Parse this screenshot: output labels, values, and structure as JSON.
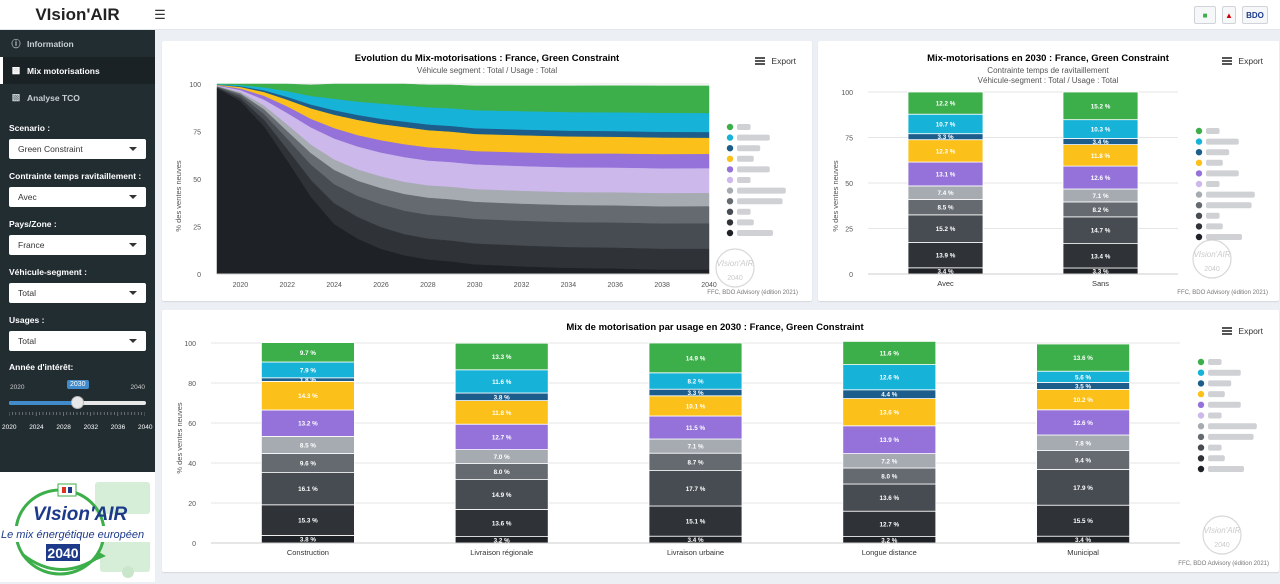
{
  "app": {
    "brand": "VIsion'AIR",
    "logo_right_text": "BDO"
  },
  "sidebar": {
    "menu": [
      {
        "label": "Information",
        "icon": "info-icon"
      },
      {
        "label": "Mix motorisations",
        "icon": "truck-icon"
      },
      {
        "label": "Analyse TCO",
        "icon": "chart-icon"
      }
    ],
    "controls": [
      {
        "label": "Scenario :",
        "value": "Green Constraint"
      },
      {
        "label": "Contrainte temps ravitaillement :",
        "value": "Avec"
      },
      {
        "label": "Pays/Zone :",
        "value": "France"
      },
      {
        "label": "Véhicule-segment :",
        "value": "Total"
      },
      {
        "label": "Usages :",
        "value": "Total"
      }
    ],
    "slider": {
      "label": "Année d'intérêt:",
      "min": "2020",
      "max": "2040",
      "value": "2030",
      "value_num": 2030,
      "min_num": 2020,
      "max_num": 2040,
      "ticks": [
        "2020",
        "2024",
        "2028",
        "2032",
        "2036",
        "2040"
      ]
    },
    "logo": {
      "main": "VIsion'AIR",
      "tagline": "Le mix énergétique européen",
      "year": "2040"
    }
  },
  "export_label": "Export",
  "legend_series": [
    "BEV",
    "Fuel Cell",
    "ICE H2",
    "PHEV",
    "CNG + LPG",
    "LNG",
    "Biodiesel B100",
    "Biodiesel HVO",
    "HEV",
    "MHEV",
    "Diesel ICE"
  ],
  "colors": [
    "#3cae4a",
    "#17b2d8",
    "#1c5d8c",
    "#fbc019",
    "#9472d9",
    "#cdb8ec",
    "#a6abb1",
    "#656a70",
    "#474c52",
    "#2f3338",
    "#1e2125"
  ],
  "watermark": {
    "text": "VIsion'AIR",
    "year": "2040"
  },
  "source": "FFC, BDO Advisory (édition 2021)",
  "source2": "FFC, BDO Advisory (édition 2021)",
  "chart_data": [
    {
      "type": "area",
      "title": "Evolution du Mix-motorisations : France, Green Constraint",
      "subtitle": "Véhicule segment : Total / Usage : Total",
      "ylabel": "% des ventes neuves",
      "ylim": [
        0,
        100
      ],
      "yticks": [
        "0",
        "25",
        "50",
        "75",
        "100"
      ],
      "xticks": [
        "2020",
        "2022",
        "2024",
        "2026",
        "2028",
        "2030",
        "2032",
        "2034",
        "2036",
        "2038",
        "2040"
      ],
      "x": [
        2019,
        2020,
        2021,
        2022,
        2023,
        2024,
        2025,
        2026,
        2027,
        2028,
        2029,
        2030,
        2032,
        2034,
        2036,
        2038,
        2040
      ],
      "series": [
        {
          "values": [
            0.3,
            0.8,
            2,
            4,
            6,
            8,
            9.5,
            10.5,
            11.5,
            12,
            12.5,
            13,
            13.5,
            14,
            14.2,
            14.4,
            14.5
          ]
        },
        {
          "values": [
            0.2,
            0.6,
            1.5,
            3,
            4.5,
            6,
            7,
            8,
            8.5,
            9,
            9.3,
            9.5,
            9.7,
            9.8,
            9.9,
            10,
            10
          ]
        },
        {
          "values": [
            0.1,
            0.4,
            0.9,
            1.5,
            2,
            2.4,
            2.6,
            2.8,
            2.9,
            3,
            3,
            3,
            3,
            3,
            3,
            3,
            3
          ]
        },
        {
          "values": [
            0.2,
            0.8,
            2,
            3.5,
            5.5,
            7,
            8,
            8.5,
            9,
            9,
            9,
            9,
            9,
            9,
            8.8,
            8.7,
            8.5
          ]
        },
        {
          "values": [
            0.2,
            0.8,
            2,
            3.5,
            4.5,
            5.5,
            6,
            6.5,
            6.8,
            7,
            7,
            7,
            7.2,
            7.3,
            7.4,
            7.5,
            7.5
          ]
        },
        {
          "values": [
            0.2,
            1,
            3,
            6,
            9,
            11,
            12,
            12.5,
            13,
            13,
            13,
            13,
            13,
            13,
            13,
            13,
            13
          ]
        },
        {
          "values": [
            0.2,
            0.8,
            2,
            3.5,
            4.5,
            5.5,
            6,
            6.2,
            6.4,
            6.5,
            6.6,
            6.7,
            6.8,
            6.8,
            6.9,
            7,
            7
          ]
        },
        {
          "values": [
            0.3,
            1,
            2.5,
            4,
            6,
            7.5,
            8,
            8.5,
            8.8,
            9,
            9,
            9,
            9,
            9,
            9,
            9,
            9
          ]
        },
        {
          "values": [
            0.3,
            1.5,
            3,
            5.5,
            8,
            10,
            11,
            12,
            12.3,
            12.5,
            12.7,
            12.9,
            13,
            13.1,
            13.2,
            13.3,
            13.4
          ]
        },
        {
          "values": [
            0.3,
            1.5,
            3.5,
            6,
            9,
            11,
            11.5,
            11.5,
            11.2,
            11,
            11,
            11,
            11,
            11,
            11,
            11,
            11
          ]
        },
        {
          "values": [
            97.7,
            90.8,
            77.6,
            59.5,
            40.5,
            26.1,
            18.4,
            13,
            9.6,
            7.5,
            6.4,
            4.9,
            3.8,
            3,
            2.7,
            2.1,
            2.1
          ]
        }
      ]
    },
    {
      "type": "bar",
      "stacked": true,
      "title": "Mix-motorisations en 2030 : France, Green Constraint",
      "subtitle": "Contrainte temps de ravitaillement",
      "subtitle2": "Véhicule-segment : Total / Usage : Total",
      "ylabel": "% des ventes neuves",
      "ylim": [
        0,
        100
      ],
      "yticks": [
        "0",
        "25",
        "50",
        "75",
        "100"
      ],
      "categories": [
        "Avec",
        "Sans"
      ],
      "series": [
        {
          "values": [
            12.2,
            15.2
          ]
        },
        {
          "values": [
            10.7,
            10.3
          ]
        },
        {
          "values": [
            3.3,
            3.4
          ]
        },
        {
          "values": [
            12.3,
            11.8
          ]
        },
        {
          "values": [
            13.1,
            12.6
          ]
        },
        {
          "values": [
            0,
            0
          ]
        },
        {
          "values": [
            7.4,
            7.1
          ]
        },
        {
          "values": [
            8.5,
            8.2
          ]
        },
        {
          "values": [
            15.2,
            14.7
          ]
        },
        {
          "values": [
            13.9,
            13.4
          ]
        },
        {
          "values": [
            3.4,
            3.3
          ]
        }
      ],
      "labels": [
        [
          "12.2 %",
          "15.2 %"
        ],
        [
          "10.7 %",
          "10.3 %"
        ],
        [
          "3.3 %",
          "3.4 %"
        ],
        [
          "12.3 %",
          "11.8 %"
        ],
        [
          "13.1 %",
          "12.6 %"
        ],
        [
          "",
          ""
        ],
        [
          "7.4 %",
          "7.1 %"
        ],
        [
          "8.5 %",
          "8.2 %"
        ],
        [
          "15.2 %",
          "14.7 %"
        ],
        [
          "13.9 %",
          "13.4 %"
        ],
        [
          "3.4 %",
          "3.3 %"
        ]
      ]
    },
    {
      "type": "bar",
      "stacked": true,
      "title": "Mix de motorisation par usage en 2030 : France, Green Constraint",
      "ylabel": "% des ventes neuves",
      "ylim": [
        0,
        100
      ],
      "yticks": [
        "0",
        "20",
        "40",
        "60",
        "80",
        "100"
      ],
      "categories": [
        "Construction",
        "Livraison régionale",
        "Livraison urbaine",
        "Longue distance",
        "Municipal"
      ],
      "series": [
        {
          "values": [
            9.7,
            13.3,
            14.9,
            11.6,
            13.6
          ]
        },
        {
          "values": [
            7.9,
            11.6,
            8.2,
            12.6,
            5.6
          ]
        },
        {
          "values": [
            1.8,
            3.8,
            3.3,
            4.4,
            3.5
          ]
        },
        {
          "values": [
            14.3,
            11.8,
            10.1,
            13.6,
            10.2
          ]
        },
        {
          "values": [
            13.2,
            12.7,
            11.5,
            13.9,
            12.6
          ]
        },
        {
          "values": [
            0,
            0,
            0,
            0,
            0
          ]
        },
        {
          "values": [
            8.5,
            7.0,
            7.1,
            7.2,
            7.8
          ]
        },
        {
          "values": [
            9.6,
            8.0,
            8.7,
            8.0,
            9.4
          ]
        },
        {
          "values": [
            16.1,
            14.9,
            17.7,
            13.6,
            17.9
          ]
        },
        {
          "values": [
            15.3,
            13.6,
            15.1,
            12.7,
            15.5
          ]
        },
        {
          "values": [
            3.8,
            3.2,
            3.4,
            3.2,
            3.4
          ]
        }
      ],
      "labels": [
        [
          "9.7 %",
          "13.3 %",
          "14.9 %",
          "11.6 %",
          "13.6 %"
        ],
        [
          "7.9 %",
          "11.6 %",
          "8.2 %",
          "12.6 %",
          "5.6 %"
        ],
        [
          "1.8 %",
          "3.8 %",
          "3.3 %",
          "4.4 %",
          "3.5 %"
        ],
        [
          "14.3 %",
          "11.8 %",
          "10.1 %",
          "13.6 %",
          "10.2 %"
        ],
        [
          "13.2 %",
          "12.7 %",
          "11.5 %",
          "13.9 %",
          "12.6 %"
        ],
        [
          "",
          "",
          "",
          "",
          ""
        ],
        [
          "8.5 %",
          "7.0 %",
          "7.1 %",
          "7.2 %",
          "7.8 %"
        ],
        [
          "9.6 %",
          "8.0 %",
          "8.7 %",
          "8.0 %",
          "9.4 %"
        ],
        [
          "16.1 %",
          "14.9 %",
          "17.7 %",
          "13.6 %",
          "17.9 %"
        ],
        [
          "15.3 %",
          "13.6 %",
          "15.1 %",
          "12.7 %",
          "15.5 %"
        ],
        [
          "3.8 %",
          "3.2 %",
          "3.4 %",
          "3.2 %",
          "3.4 %"
        ]
      ]
    }
  ]
}
